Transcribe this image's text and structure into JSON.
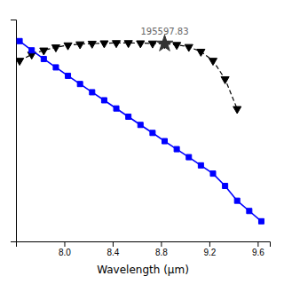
{
  "chart_data": {
    "type": "line",
    "xlabel": "Wavelength (μm)",
    "xlim": [
      7.6,
      9.7
    ],
    "ylim": [
      0.0,
      1.08
    ],
    "xticks": [
      {
        "value": 8.0,
        "label": "8.0"
      },
      8.4,
      8.8,
      9.2,
      9.6
    ],
    "yticks": [],
    "tick_labels": "x",
    "grid": false,
    "series": [
      {
        "color": "black",
        "marker": "triangle-down",
        "line_style": "dashed",
        "x": [
          7.63,
          7.73,
          7.83,
          7.93,
          8.03,
          8.13,
          8.23,
          8.33,
          8.43,
          8.53,
          8.63,
          8.73,
          8.83,
          8.93,
          9.03,
          9.13,
          9.23,
          9.33,
          9.43
        ],
        "values": [
          0.88,
          0.91,
          0.93,
          0.945,
          0.955,
          0.96,
          0.963,
          0.965,
          0.966,
          0.966,
          0.965,
          0.964,
          0.962,
          0.957,
          0.947,
          0.924,
          0.88,
          0.79,
          0.645
        ]
      },
      {
        "color": "blue",
        "marker": "square",
        "line_style": "solid",
        "x": [
          7.63,
          7.73,
          7.83,
          7.93,
          8.03,
          8.13,
          8.23,
          8.33,
          8.43,
          8.53,
          8.63,
          8.73,
          8.83,
          8.93,
          9.03,
          9.13,
          9.23,
          9.33,
          9.43,
          9.53,
          9.63
        ],
        "values": [
          0.975,
          0.93,
          0.888,
          0.847,
          0.806,
          0.766,
          0.726,
          0.687,
          0.647,
          0.607,
          0.567,
          0.528,
          0.488,
          0.449,
          0.41,
          0.37,
          0.33,
          0.27,
          0.198,
          0.148,
          0.098
        ]
      }
    ],
    "annotations": [
      {
        "text": "195597.83",
        "x": 8.83,
        "y": 0.962,
        "marker": "star"
      }
    ]
  }
}
